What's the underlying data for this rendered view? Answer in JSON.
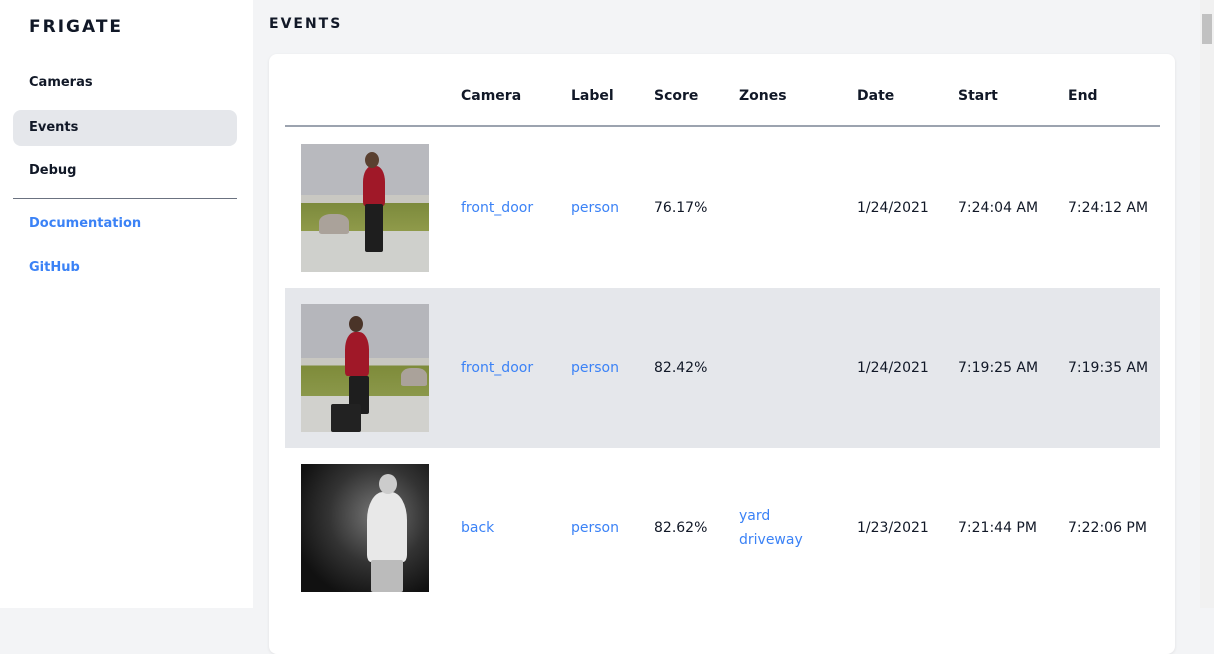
{
  "sidebar": {
    "brand": "FRIGATE",
    "items": [
      {
        "label": "Cameras"
      },
      {
        "label": "Events",
        "active": true
      },
      {
        "label": "Debug"
      }
    ],
    "links": [
      {
        "label": "Documentation"
      },
      {
        "label": "GitHub"
      }
    ]
  },
  "main": {
    "title": "EVENTS",
    "columns": [
      "",
      "Camera",
      "Label",
      "Score",
      "Zones",
      "Date",
      "Start",
      "End"
    ],
    "rows": [
      {
        "camera": "front_door",
        "label": "person",
        "score": "76.17%",
        "zones": [],
        "date": "1/24/2021",
        "start": "7:24:04 AM",
        "end": "7:24:12 AM"
      },
      {
        "camera": "front_door",
        "label": "person",
        "score": "82.42%",
        "zones": [],
        "date": "1/24/2021",
        "start": "7:19:25 AM",
        "end": "7:19:35 AM"
      },
      {
        "camera": "back",
        "label": "person",
        "score": "82.62%",
        "zones": [
          "yard",
          "driveway"
        ],
        "date": "1/23/2021",
        "start": "7:21:44 PM",
        "end": "7:22:06 PM"
      }
    ]
  },
  "colors": {
    "accent": "#3b82f6",
    "active_bg": "#e5e7eb",
    "page_bg": "#f3f4f6"
  }
}
